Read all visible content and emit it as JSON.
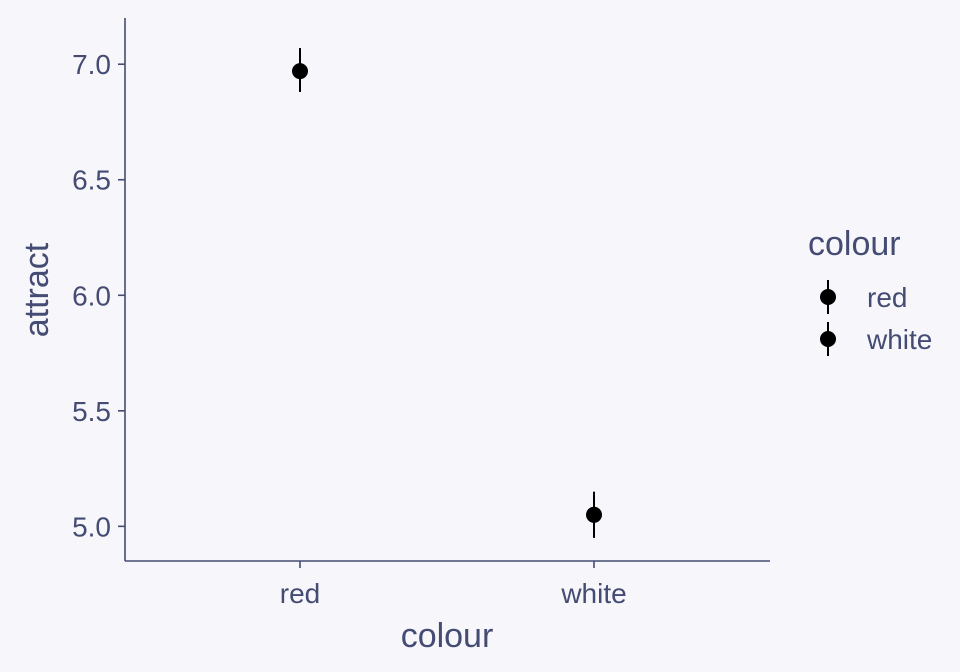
{
  "chart_data": {
    "type": "scatter",
    "categories": [
      "red",
      "white"
    ],
    "values": [
      6.97,
      5.05
    ],
    "error_low": [
      6.88,
      4.95
    ],
    "error_high": [
      7.07,
      5.15
    ],
    "xlabel": "colour",
    "ylabel": "attract",
    "ylim": [
      4.85,
      7.2
    ],
    "yticks": [
      5.0,
      5.5,
      6.0,
      6.5,
      7.0
    ],
    "ytick_labels": [
      "5.0",
      "5.5",
      "6.0",
      "6.5",
      "7.0"
    ],
    "grid": false,
    "legend": {
      "title": "colour",
      "entries": [
        "red",
        "white"
      ],
      "placement": "right"
    },
    "colors": {
      "points": "#000000",
      "axis": "#454c73",
      "text": "#454c73",
      "background": "#f7f7fb"
    }
  }
}
